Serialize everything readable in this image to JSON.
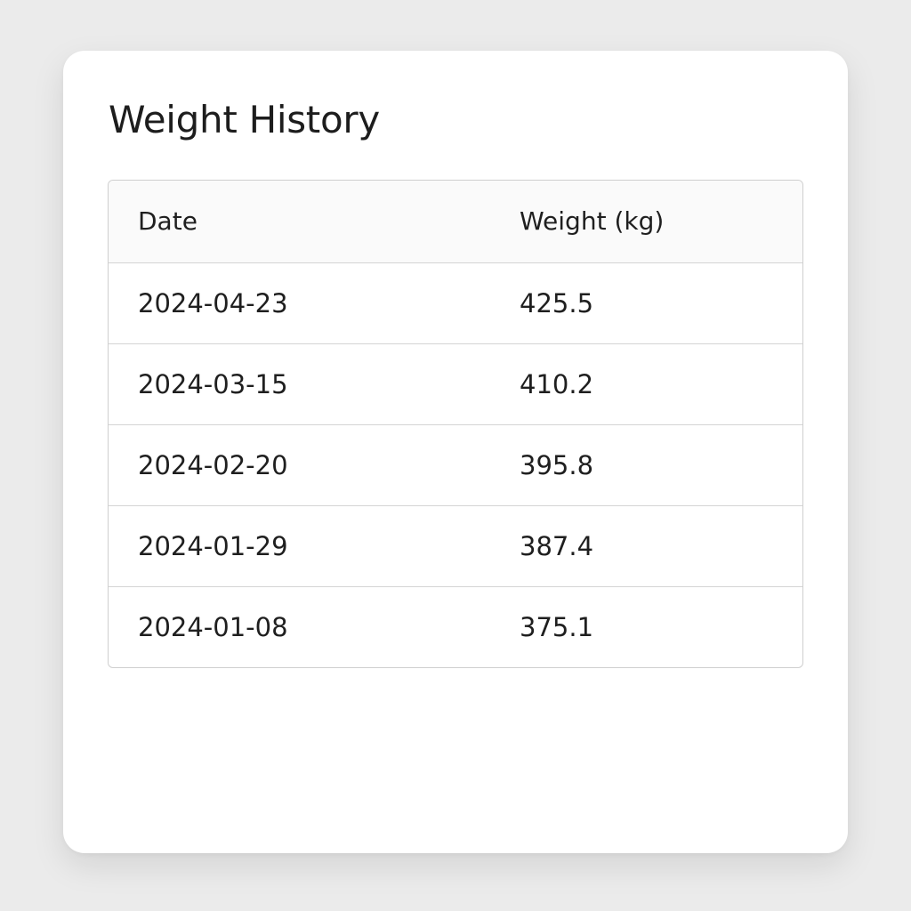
{
  "card": {
    "title": "Weight History"
  },
  "table": {
    "columns": [
      "Date",
      "Weight (kg)"
    ],
    "rows": [
      {
        "date": "2024-04-23",
        "weight": "425.5"
      },
      {
        "date": "2024-03-15",
        "weight": "410.2"
      },
      {
        "date": "2024-02-20",
        "weight": "395.8"
      },
      {
        "date": "2024-01-29",
        "weight": "387.4"
      },
      {
        "date": "2024-01-08",
        "weight": "375.1"
      }
    ]
  }
}
